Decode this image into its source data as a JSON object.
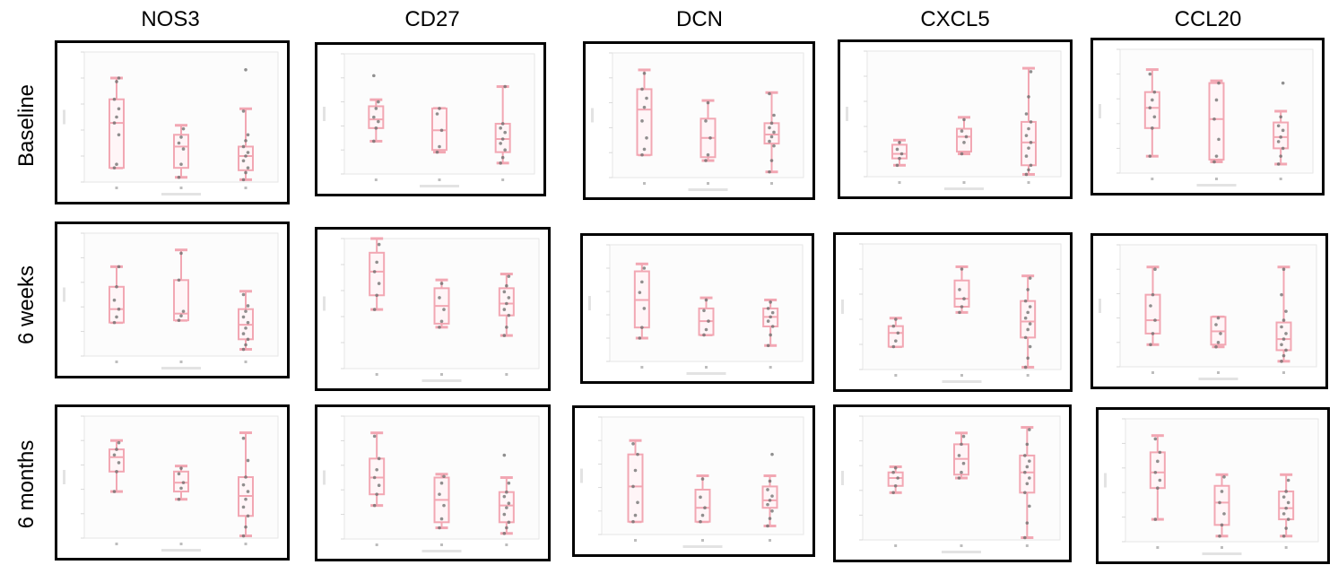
{
  "columns": [
    "NOS3",
    "CD27",
    "DCN",
    "CXCL5",
    "CCL20"
  ],
  "rows": [
    "Baseline",
    "6 weeks",
    "6 months"
  ],
  "chart_data": {
    "type": "box",
    "groups": [
      "1",
      "2",
      "3"
    ],
    "panels": [
      {
        "gene": "NOS3",
        "timepoint": "Baseline",
        "boxes": [
          {
            "whisker_low": 0.12,
            "q1": 0.12,
            "median": 0.5,
            "q3": 0.7,
            "whisker_high": 0.88,
            "points": [
              0.12,
              0.15,
              0.4,
              0.5,
              0.55,
              0.62,
              0.7,
              0.85,
              0.88
            ]
          },
          {
            "whisker_low": 0.04,
            "q1": 0.12,
            "median": 0.3,
            "q3": 0.4,
            "whisker_high": 0.48,
            "points": [
              0.04,
              0.15,
              0.28,
              0.33,
              0.38,
              0.45
            ]
          },
          {
            "whisker_low": 0.02,
            "q1": 0.1,
            "median": 0.22,
            "q3": 0.3,
            "whisker_high": 0.62,
            "points": [
              0.02,
              0.08,
              0.12,
              0.18,
              0.22,
              0.25,
              0.3,
              0.35,
              0.4,
              0.6,
              0.95
            ]
          }
        ]
      },
      {
        "gene": "CD27",
        "timepoint": "Baseline",
        "boxes": [
          {
            "whisker_low": 0.3,
            "q1": 0.42,
            "median": 0.5,
            "q3": 0.62,
            "whisker_high": 0.68,
            "points": [
              0.3,
              0.42,
              0.48,
              0.52,
              0.6,
              0.66,
              0.9
            ]
          },
          {
            "whisker_low": 0.2,
            "q1": 0.22,
            "median": 0.4,
            "q3": 0.6,
            "whisker_high": 0.6,
            "points": [
              0.2,
              0.25,
              0.4,
              0.55,
              0.6
            ]
          },
          {
            "whisker_low": 0.1,
            "q1": 0.2,
            "median": 0.32,
            "q3": 0.46,
            "whisker_high": 0.8,
            "points": [
              0.1,
              0.15,
              0.22,
              0.28,
              0.32,
              0.38,
              0.42,
              0.46,
              0.8
            ]
          }
        ]
      },
      {
        "gene": "DCN",
        "timepoint": "Baseline",
        "boxes": [
          {
            "whisker_low": 0.2,
            "q1": 0.2,
            "median": 0.6,
            "q3": 0.78,
            "whisker_high": 0.95,
            "points": [
              0.2,
              0.25,
              0.35,
              0.5,
              0.62,
              0.7,
              0.78,
              0.92
            ]
          },
          {
            "whisker_low": 0.15,
            "q1": 0.18,
            "median": 0.35,
            "q3": 0.52,
            "whisker_high": 0.68,
            "points": [
              0.15,
              0.2,
              0.35,
              0.5,
              0.66
            ]
          },
          {
            "whisker_low": 0.05,
            "q1": 0.3,
            "median": 0.38,
            "q3": 0.48,
            "whisker_high": 0.75,
            "points": [
              0.05,
              0.15,
              0.28,
              0.32,
              0.36,
              0.4,
              0.44,
              0.48,
              0.55,
              0.74
            ]
          }
        ]
      },
      {
        "gene": "CXCL5",
        "timepoint": "Baseline",
        "boxes": [
          {
            "whisker_low": 0.1,
            "q1": 0.16,
            "median": 0.2,
            "q3": 0.28,
            "whisker_high": 0.32,
            "points": [
              0.1,
              0.16,
              0.2,
              0.24,
              0.3
            ]
          },
          {
            "whisker_low": 0.2,
            "q1": 0.22,
            "median": 0.35,
            "q3": 0.42,
            "whisker_high": 0.52,
            "points": [
              0.2,
              0.3,
              0.35,
              0.4,
              0.5
            ]
          },
          {
            "whisker_low": 0.02,
            "q1": 0.1,
            "median": 0.3,
            "q3": 0.48,
            "whisker_high": 0.95,
            "points": [
              0.02,
              0.06,
              0.1,
              0.18,
              0.25,
              0.3,
              0.36,
              0.42,
              0.48,
              0.55,
              0.7,
              0.92
            ]
          }
        ]
      },
      {
        "gene": "CCL20",
        "timepoint": "Baseline",
        "boxes": [
          {
            "whisker_low": 0.15,
            "q1": 0.4,
            "median": 0.58,
            "q3": 0.72,
            "whisker_high": 0.92,
            "points": [
              0.15,
              0.4,
              0.5,
              0.58,
              0.65,
              0.72,
              0.88
            ]
          },
          {
            "whisker_low": 0.1,
            "q1": 0.12,
            "median": 0.48,
            "q3": 0.8,
            "whisker_high": 0.82,
            "points": [
              0.1,
              0.15,
              0.3,
              0.48,
              0.65,
              0.8
            ]
          },
          {
            "whisker_low": 0.08,
            "q1": 0.22,
            "median": 0.32,
            "q3": 0.45,
            "whisker_high": 0.55,
            "points": [
              0.08,
              0.15,
              0.22,
              0.28,
              0.32,
              0.38,
              0.42,
              0.5,
              0.8
            ]
          }
        ]
      },
      {
        "gene": "NOS3",
        "timepoint": "6 weeks",
        "boxes": [
          {
            "whisker_low": 0.3,
            "q1": 0.3,
            "median": 0.42,
            "q3": 0.62,
            "whisker_high": 0.8,
            "points": [
              0.3,
              0.35,
              0.42,
              0.5,
              0.62,
              0.8
            ]
          },
          {
            "whisker_low": 0.32,
            "q1": 0.32,
            "median": 0.38,
            "q3": 0.68,
            "whisker_high": 0.95,
            "points": [
              0.32,
              0.36,
              0.4,
              0.68,
              0.92
            ]
          },
          {
            "whisker_low": 0.06,
            "q1": 0.15,
            "median": 0.28,
            "q3": 0.42,
            "whisker_high": 0.58,
            "points": [
              0.06,
              0.1,
              0.15,
              0.2,
              0.25,
              0.3,
              0.35,
              0.4,
              0.45,
              0.55
            ]
          }
        ]
      },
      {
        "gene": "CD27",
        "timepoint": "6 weeks",
        "boxes": [
          {
            "whisker_low": 0.5,
            "q1": 0.62,
            "median": 0.82,
            "q3": 0.98,
            "whisker_high": 1.1,
            "points": [
              0.5,
              0.62,
              0.72,
              0.82,
              0.9,
              1.05
            ]
          },
          {
            "whisker_low": 0.35,
            "q1": 0.38,
            "median": 0.53,
            "q3": 0.68,
            "whisker_high": 0.75,
            "points": [
              0.35,
              0.4,
              0.5,
              0.6,
              0.72
            ]
          },
          {
            "whisker_low": 0.28,
            "q1": 0.45,
            "median": 0.55,
            "q3": 0.68,
            "whisker_high": 0.8,
            "points": [
              0.28,
              0.35,
              0.45,
              0.5,
              0.55,
              0.6,
              0.65,
              0.7,
              0.78
            ]
          }
        ]
      },
      {
        "gene": "DCN",
        "timepoint": "6 weeks",
        "boxes": [
          {
            "whisker_low": 0.22,
            "q1": 0.32,
            "median": 0.58,
            "q3": 0.85,
            "whisker_high": 0.92,
            "points": [
              0.22,
              0.32,
              0.5,
              0.65,
              0.75,
              0.88
            ]
          },
          {
            "whisker_low": 0.25,
            "q1": 0.25,
            "median": 0.38,
            "q3": 0.5,
            "whisker_high": 0.6,
            "points": [
              0.25,
              0.3,
              0.38,
              0.48,
              0.58
            ]
          },
          {
            "whisker_low": 0.15,
            "q1": 0.33,
            "median": 0.42,
            "q3": 0.5,
            "whisker_high": 0.58,
            "points": [
              0.15,
              0.25,
              0.33,
              0.38,
              0.42,
              0.46,
              0.5,
              0.56
            ]
          }
        ]
      },
      {
        "gene": "CXCL5",
        "timepoint": "6 weeks",
        "boxes": [
          {
            "whisker_low": 0.2,
            "q1": 0.2,
            "median": 0.32,
            "q3": 0.38,
            "whisker_high": 0.45,
            "points": [
              0.2,
              0.25,
              0.32,
              0.38,
              0.44
            ]
          },
          {
            "whisker_low": 0.5,
            "q1": 0.55,
            "median": 0.62,
            "q3": 0.78,
            "whisker_high": 0.9,
            "points": [
              0.5,
              0.55,
              0.62,
              0.7,
              0.88
            ]
          },
          {
            "whisker_low": 0.02,
            "q1": 0.28,
            "median": 0.42,
            "q3": 0.6,
            "whisker_high": 0.82,
            "points": [
              0.02,
              0.1,
              0.2,
              0.28,
              0.35,
              0.4,
              0.45,
              0.5,
              0.55,
              0.6,
              0.7,
              0.8
            ]
          }
        ]
      },
      {
        "gene": "CCL20",
        "timepoint": "6 weeks",
        "boxes": [
          {
            "whisker_low": 0.2,
            "q1": 0.3,
            "median": 0.42,
            "q3": 0.65,
            "whisker_high": 0.9,
            "points": [
              0.2,
              0.3,
              0.42,
              0.55,
              0.65,
              0.88
            ]
          },
          {
            "whisker_low": 0.18,
            "q1": 0.2,
            "median": 0.32,
            "q3": 0.45,
            "whisker_high": 0.45,
            "points": [
              0.18,
              0.22,
              0.3,
              0.38,
              0.44
            ]
          },
          {
            "whisker_low": 0.05,
            "q1": 0.15,
            "median": 0.25,
            "q3": 0.4,
            "whisker_high": 0.9,
            "points": [
              0.05,
              0.1,
              0.15,
              0.2,
              0.25,
              0.3,
              0.36,
              0.42,
              0.5,
              0.65,
              0.88
            ]
          }
        ]
      },
      {
        "gene": "NOS3",
        "timepoint": "6 months",
        "boxes": [
          {
            "whisker_low": 0.42,
            "q1": 0.6,
            "median": 0.73,
            "q3": 0.8,
            "whisker_high": 0.88,
            "points": [
              0.42,
              0.6,
              0.68,
              0.75,
              0.8,
              0.86
            ]
          },
          {
            "whisker_low": 0.35,
            "q1": 0.42,
            "median": 0.5,
            "q3": 0.6,
            "whisker_high": 0.65,
            "points": [
              0.35,
              0.45,
              0.5,
              0.58,
              0.63
            ]
          },
          {
            "whisker_low": 0.02,
            "q1": 0.2,
            "median": 0.38,
            "q3": 0.55,
            "whisker_high": 0.95,
            "points": [
              0.02,
              0.1,
              0.2,
              0.28,
              0.35,
              0.42,
              0.48,
              0.55,
              0.7,
              0.9
            ]
          }
        ]
      },
      {
        "gene": "CD27",
        "timepoint": "6 months",
        "boxes": [
          {
            "whisker_low": 0.3,
            "q1": 0.4,
            "median": 0.55,
            "q3": 0.72,
            "whisker_high": 0.95,
            "points": [
              0.3,
              0.4,
              0.48,
              0.55,
              0.62,
              0.72,
              0.92
            ]
          },
          {
            "whisker_low": 0.1,
            "q1": 0.15,
            "median": 0.35,
            "q3": 0.55,
            "whisker_high": 0.58,
            "points": [
              0.1,
              0.18,
              0.3,
              0.4,
              0.5,
              0.56
            ]
          },
          {
            "whisker_low": 0.05,
            "q1": 0.15,
            "median": 0.3,
            "q3": 0.42,
            "whisker_high": 0.55,
            "points": [
              0.05,
              0.1,
              0.15,
              0.22,
              0.28,
              0.32,
              0.38,
              0.42,
              0.5,
              0.75
            ]
          }
        ]
      },
      {
        "gene": "DCN",
        "timepoint": "6 months",
        "boxes": [
          {
            "whisker_low": 0.12,
            "q1": 0.12,
            "median": 0.45,
            "q3": 0.75,
            "whisker_high": 0.88,
            "points": [
              0.12,
              0.18,
              0.3,
              0.45,
              0.6,
              0.75,
              0.85
            ]
          },
          {
            "whisker_low": 0.12,
            "q1": 0.12,
            "median": 0.25,
            "q3": 0.42,
            "whisker_high": 0.55,
            "points": [
              0.12,
              0.18,
              0.25,
              0.35,
              0.52
            ]
          },
          {
            "whisker_low": 0.08,
            "q1": 0.25,
            "median": 0.32,
            "q3": 0.45,
            "whisker_high": 0.55,
            "points": [
              0.08,
              0.15,
              0.22,
              0.28,
              0.32,
              0.36,
              0.42,
              0.5,
              0.75
            ]
          }
        ]
      },
      {
        "gene": "CXCL5",
        "timepoint": "6 months",
        "boxes": [
          {
            "whisker_low": 0.42,
            "q1": 0.48,
            "median": 0.55,
            "q3": 0.6,
            "whisker_high": 0.65,
            "points": [
              0.42,
              0.48,
              0.55,
              0.6,
              0.64
            ]
          },
          {
            "whisker_low": 0.55,
            "q1": 0.58,
            "median": 0.72,
            "q3": 0.85,
            "whisker_high": 0.95,
            "points": [
              0.55,
              0.6,
              0.68,
              0.75,
              0.85,
              0.92
            ]
          },
          {
            "whisker_low": 0.02,
            "q1": 0.42,
            "median": 0.6,
            "q3": 0.75,
            "whisker_high": 1.0,
            "points": [
              0.02,
              0.15,
              0.3,
              0.42,
              0.5,
              0.55,
              0.6,
              0.65,
              0.7,
              0.75,
              0.85,
              0.98
            ]
          }
        ]
      },
      {
        "gene": "CCL20",
        "timepoint": "6 months",
        "boxes": [
          {
            "whisker_low": 0.2,
            "q1": 0.48,
            "median": 0.62,
            "q3": 0.8,
            "whisker_high": 0.95,
            "points": [
              0.2,
              0.48,
              0.55,
              0.62,
              0.72,
              0.8,
              0.92
            ]
          },
          {
            "whisker_low": 0.05,
            "q1": 0.15,
            "median": 0.35,
            "q3": 0.5,
            "whisker_high": 0.6,
            "points": [
              0.05,
              0.15,
              0.25,
              0.35,
              0.45,
              0.58
            ]
          },
          {
            "whisker_low": 0.05,
            "q1": 0.2,
            "median": 0.3,
            "q3": 0.45,
            "whisker_high": 0.6,
            "points": [
              0.05,
              0.12,
              0.2,
              0.25,
              0.3,
              0.35,
              0.4,
              0.45,
              0.55
            ]
          }
        ]
      }
    ]
  }
}
